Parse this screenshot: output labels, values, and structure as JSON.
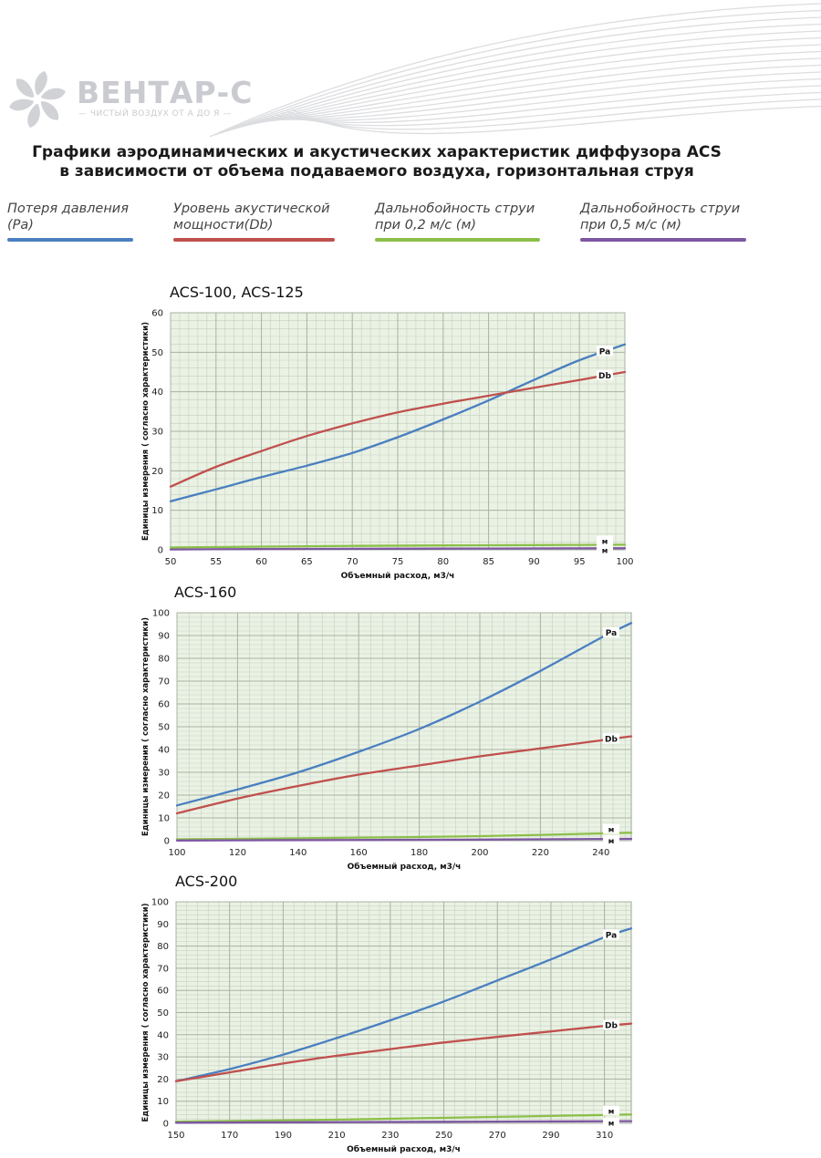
{
  "brand": {
    "name": "ВЕНТАР-С",
    "tagline": "— ЧИСТЫЙ ВОЗДУХ ОТ А ДО Я —"
  },
  "title": {
    "line1": "Графики аэродинамических и акустических характеристик диффузора ACS",
    "line2": "в зависимости от объема подаваемого воздуха, горизонтальная струя"
  },
  "legend": [
    {
      "line1": "Потеря давления",
      "line2": "(Pa)",
      "color": "#4a7fc0"
    },
    {
      "line1": "Уровень акустической",
      "line2": "мощности(Db)",
      "color": "#c0504d"
    },
    {
      "line1": "Дальнобойность струи",
      "line2": "при 0,2 м/с (м)",
      "color": "#8cbf4a"
    },
    {
      "line1": "Дальнобойность струи",
      "line2": "при 0,5 м/с (м)",
      "color": "#7e57a3"
    }
  ],
  "colors": {
    "pa": "#4a7fc0",
    "db": "#c0504d",
    "m02": "#8cbf4a",
    "m05": "#7e57a3",
    "grid_bg": "#eaf2e4",
    "grid_line": "#c6d0c1"
  },
  "chart_data": [
    {
      "type": "line",
      "title": "ACS-100, ACS-125",
      "xlabel": "Объемный расход, м3/ч",
      "ylabel": "Единицы измерения ( согласно характеристики)",
      "xlim": [
        50,
        100
      ],
      "ylim": [
        0,
        60
      ],
      "x_ticks": [
        50,
        55,
        60,
        65,
        70,
        75,
        80,
        85,
        90,
        95,
        100
      ],
      "y_ticks": [
        0,
        10,
        20,
        30,
        40,
        50,
        60
      ],
      "grid": true,
      "series": [
        {
          "name": "Pa",
          "color": "#4a7fc0",
          "x": [
            50,
            55,
            60,
            65,
            70,
            75,
            80,
            85,
            90,
            95,
            100
          ],
          "y": [
            12.3,
            15.3,
            18.4,
            21.3,
            24.5,
            28.5,
            33,
            37.8,
            43,
            48,
            52
          ]
        },
        {
          "name": "Db",
          "color": "#c0504d",
          "x": [
            50,
            55,
            60,
            65,
            70,
            75,
            80,
            85,
            90,
            95,
            100
          ],
          "y": [
            16,
            21,
            25,
            28.8,
            32,
            34.8,
            37,
            39,
            41,
            43,
            45
          ]
        },
        {
          "name": "м",
          "color": "#8cbf4a",
          "x": [
            50,
            60,
            70,
            80,
            90,
            100
          ],
          "y": [
            0.6,
            0.8,
            1,
            1.1,
            1.2,
            1.3
          ]
        },
        {
          "name": "м",
          "color": "#7e57a3",
          "x": [
            50,
            60,
            70,
            80,
            90,
            100
          ],
          "y": [
            0.1,
            0.2,
            0.25,
            0.3,
            0.35,
            0.4
          ]
        }
      ]
    },
    {
      "type": "line",
      "title": "ACS-160",
      "xlabel": "Объемный расход, м3/ч",
      "ylabel": "Единицы измерения ( согласно характеристики)",
      "xlim": [
        100,
        250
      ],
      "ylim": [
        0,
        100
      ],
      "x_ticks": [
        100,
        120,
        140,
        160,
        180,
        200,
        220,
        240
      ],
      "y_ticks": [
        0,
        10,
        20,
        30,
        40,
        50,
        60,
        70,
        80,
        90,
        100
      ],
      "grid": true,
      "series": [
        {
          "name": "Pa",
          "color": "#4a7fc0",
          "x": [
            100,
            120,
            140,
            160,
            180,
            200,
            220,
            240,
            250
          ],
          "y": [
            15.5,
            22.5,
            30,
            39,
            49,
            61,
            74.5,
            89,
            95.5
          ]
        },
        {
          "name": "Db",
          "color": "#c0504d",
          "x": [
            100,
            120,
            140,
            160,
            180,
            200,
            220,
            240,
            250
          ],
          "y": [
            12,
            18.5,
            24,
            29,
            33,
            37,
            40.5,
            44,
            45.8
          ]
        },
        {
          "name": "м",
          "color": "#8cbf4a",
          "x": [
            100,
            150,
            200,
            250
          ],
          "y": [
            0.6,
            1.2,
            2,
            3.5
          ]
        },
        {
          "name": "м",
          "color": "#7e57a3",
          "x": [
            100,
            150,
            200,
            250
          ],
          "y": [
            0.1,
            0.3,
            0.5,
            0.8
          ]
        }
      ]
    },
    {
      "type": "line",
      "title": "ACS-200",
      "xlabel": "Объемный расход, м3/ч",
      "ylabel": "Единицы измерения ( согласно характеристики)",
      "xlim": [
        150,
        320
      ],
      "ylim": [
        0,
        100
      ],
      "x_ticks": [
        150,
        170,
        190,
        210,
        230,
        250,
        270,
        290,
        310
      ],
      "y_ticks": [
        0,
        10,
        20,
        30,
        40,
        50,
        60,
        70,
        80,
        90,
        100
      ],
      "grid": true,
      "series": [
        {
          "name": "Pa",
          "color": "#4a7fc0",
          "x": [
            150,
            170,
            190,
            210,
            230,
            250,
            270,
            290,
            310,
            320
          ],
          "y": [
            19,
            24.5,
            31,
            38.5,
            46.5,
            55,
            64.5,
            74,
            84,
            88
          ]
        },
        {
          "name": "Db",
          "color": "#c0504d",
          "x": [
            150,
            170,
            190,
            210,
            230,
            250,
            270,
            290,
            310,
            320
          ],
          "y": [
            19,
            23,
            27,
            30.5,
            33.5,
            36.5,
            39,
            41.5,
            44,
            45
          ]
        },
        {
          "name": "м",
          "color": "#8cbf4a",
          "x": [
            150,
            200,
            250,
            320
          ],
          "y": [
            0.8,
            1.5,
            2.5,
            4
          ]
        },
        {
          "name": "м",
          "color": "#7e57a3",
          "x": [
            150,
            200,
            250,
            320
          ],
          "y": [
            0.3,
            0.5,
            0.7,
            1
          ]
        }
      ]
    }
  ]
}
